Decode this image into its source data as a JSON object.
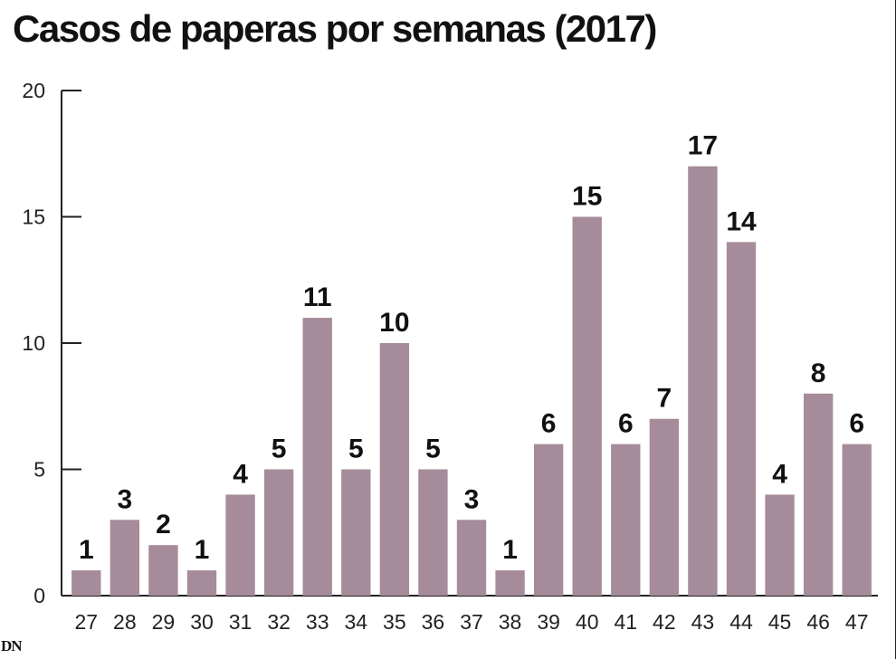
{
  "header": {
    "title": "Casos de paperas por semanas (2017)"
  },
  "source": {
    "logo_text": "DN"
  },
  "chart_data": {
    "type": "bar",
    "title": "Casos de paperas por semanas (2017)",
    "xlabel": "",
    "ylabel": "",
    "ylim": [
      0,
      20
    ],
    "yticks": [
      0,
      5,
      10,
      15,
      20
    ],
    "grid": false,
    "legend": "none",
    "bar_color": "#a68b9a",
    "categories": [
      "27",
      "28",
      "29",
      "30",
      "31",
      "32",
      "33",
      "34",
      "35",
      "36",
      "37",
      "38",
      "39",
      "40",
      "41",
      "42",
      "43",
      "44",
      "45",
      "46",
      "47"
    ],
    "values": [
      1,
      3,
      2,
      1,
      4,
      5,
      11,
      5,
      10,
      5,
      3,
      1,
      6,
      15,
      6,
      7,
      17,
      14,
      4,
      8,
      6
    ],
    "data_labels": [
      "1",
      "3",
      "2",
      "1",
      "4",
      "5",
      "11",
      "5",
      "10",
      "5",
      "3",
      "1",
      "6",
      "15",
      "6",
      "7",
      "17",
      "14",
      "4",
      "8",
      "6"
    ]
  }
}
